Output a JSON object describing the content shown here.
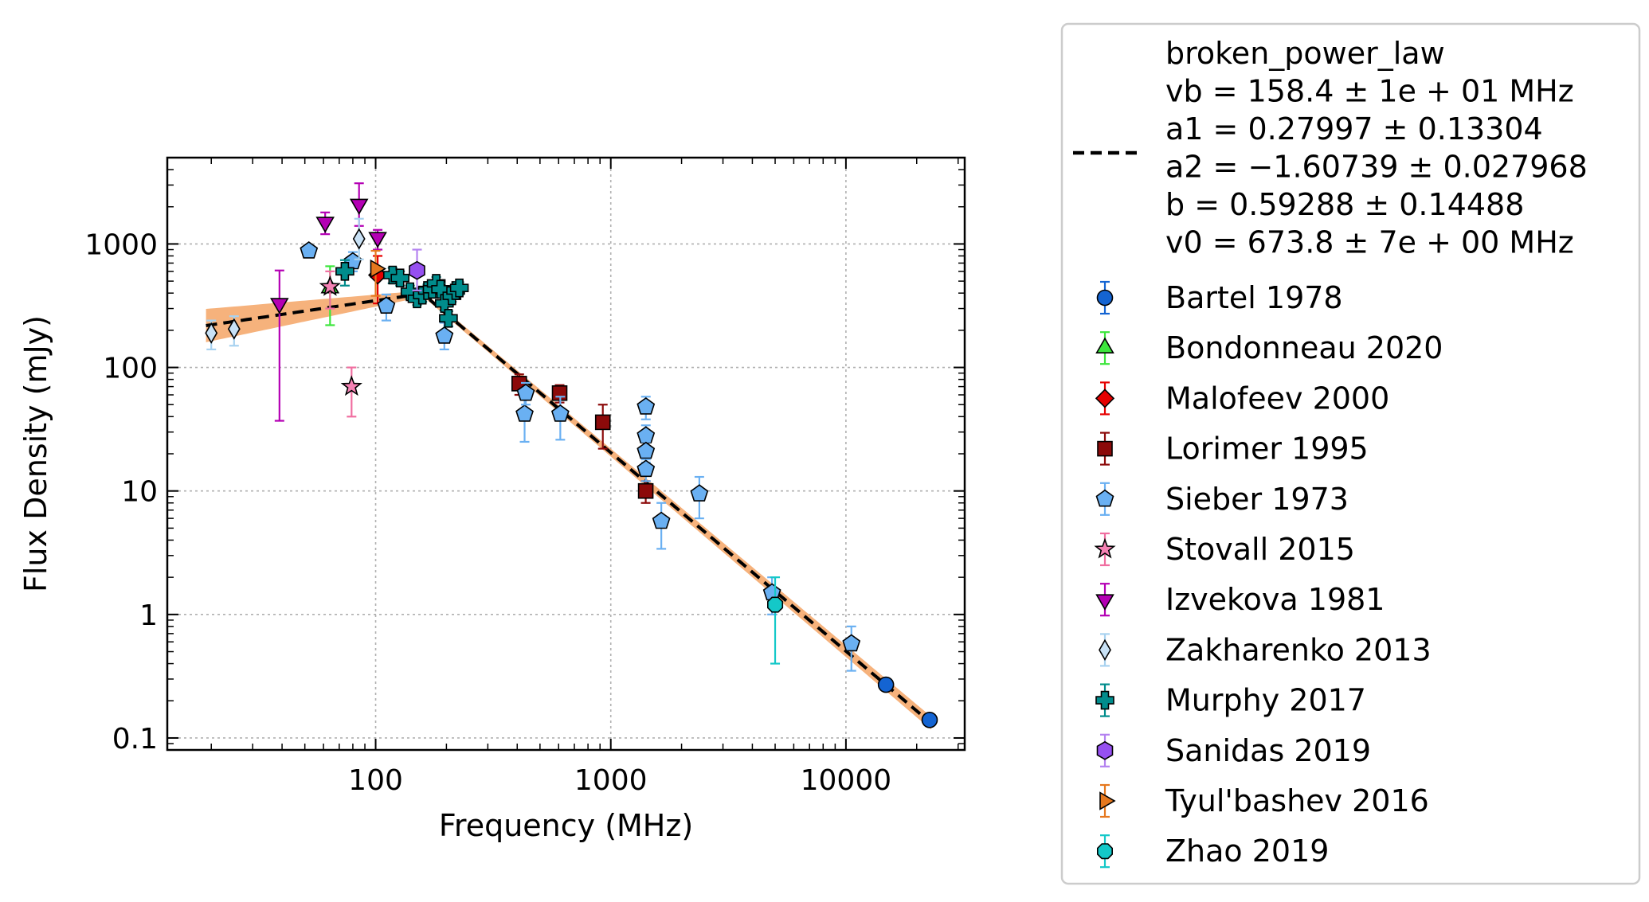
{
  "chart_data": {
    "type": "scatter",
    "xlabel": "Frequency (MHz)",
    "ylabel": "Flux Density (mJy)",
    "xscale": "log",
    "yscale": "log",
    "xlim": [
      13,
      32000
    ],
    "ylim": [
      0.08,
      5000
    ],
    "grid": true,
    "legend_position": "outside-right",
    "x_ticks": [
      {
        "value": 100,
        "label": "100"
      },
      {
        "value": 1000,
        "label": "1000"
      },
      {
        "value": 10000,
        "label": "10000"
      }
    ],
    "y_ticks": [
      {
        "value": 0.1,
        "label": "0.1"
      },
      {
        "value": 1,
        "label": "1"
      },
      {
        "value": 10,
        "label": "10"
      },
      {
        "value": 100,
        "label": "100"
      },
      {
        "value": 1000,
        "label": "1000"
      }
    ],
    "fit": {
      "name": "broken_power_law",
      "params": [
        "vb = 158.4 ± 1e + 01 MHz",
        "a1 = 0.27997 ± 0.13304",
        "a2 = −1.60739 ± 0.027968",
        "b = 0.59288 ± 0.14488",
        "v0 = 673.8 ± 7e + 00 MHz"
      ],
      "vb": 158.4,
      "a1": 0.27997,
      "a2": -1.60739,
      "b": 0.59288,
      "v0": 673.8,
      "x_range": [
        19,
        23000
      ],
      "line_color": "#000000",
      "band_color": "#f5a465"
    },
    "series": [
      {
        "name": "Bartel 1978",
        "marker": "circle",
        "color": "#1464d2",
        "err_color": "#1464d2",
        "points": [
          {
            "x": 14800,
            "y": 0.27,
            "lo": 0.25,
            "hi": 0.29
          },
          {
            "x": 22700,
            "y": 0.14,
            "lo": 0.13,
            "hi": 0.15
          }
        ]
      },
      {
        "name": "Bondonneau 2020",
        "marker": "triangle-up",
        "color": "#3ce63c",
        "err_color": "#3ce63c",
        "points": [
          {
            "x": 64,
            "y": 440,
            "lo": 220,
            "hi": 660
          }
        ]
      },
      {
        "name": "Malofeev 2000",
        "marker": "diamond",
        "color": "#e60000",
        "err_color": "#e60000",
        "points": [
          {
            "x": 102,
            "y": 560,
            "lo": 330,
            "hi": 800
          }
        ]
      },
      {
        "name": "Lorimer 1995",
        "marker": "square",
        "color": "#8c0a0a",
        "err_color": "#8c0a0a",
        "points": [
          {
            "x": 408,
            "y": 74,
            "lo": 60,
            "hi": 88
          },
          {
            "x": 606,
            "y": 62,
            "lo": 52,
            "hi": 72
          },
          {
            "x": 925,
            "y": 36,
            "lo": 22,
            "hi": 50
          },
          {
            "x": 1408,
            "y": 10,
            "lo": 8,
            "hi": 12
          }
        ]
      },
      {
        "name": "Sieber 1973",
        "marker": "pentagon",
        "color": "#6ab0f2",
        "err_color": "#6ab0f2",
        "points": [
          {
            "x": 52,
            "y": 880,
            "lo": 780,
            "hi": 980
          },
          {
            "x": 80,
            "y": 720,
            "lo": 600,
            "hi": 860
          },
          {
            "x": 111,
            "y": 315,
            "lo": 240,
            "hi": 390
          },
          {
            "x": 196,
            "y": 180,
            "lo": 140,
            "hi": 230
          },
          {
            "x": 430,
            "y": 42,
            "lo": 25,
            "hi": 60
          },
          {
            "x": 435,
            "y": 62,
            "lo": 50,
            "hi": 75
          },
          {
            "x": 610,
            "y": 42,
            "lo": 26,
            "hi": 58
          },
          {
            "x": 1410,
            "y": 48,
            "lo": 38,
            "hi": 58
          },
          {
            "x": 1410,
            "y": 28,
            "lo": 22,
            "hi": 34
          },
          {
            "x": 1410,
            "y": 21,
            "lo": 17,
            "hi": 25
          },
          {
            "x": 1410,
            "y": 15,
            "lo": 12,
            "hi": 18
          },
          {
            "x": 1640,
            "y": 5.7,
            "lo": 3.4,
            "hi": 8
          },
          {
            "x": 2380,
            "y": 9.5,
            "lo": 6,
            "hi": 13
          },
          {
            "x": 4850,
            "y": 1.5,
            "lo": 1.0,
            "hi": 2.0
          },
          {
            "x": 10550,
            "y": 0.58,
            "lo": 0.35,
            "hi": 0.8
          }
        ]
      },
      {
        "name": "Stovall 2015",
        "marker": "star",
        "color": "#f582b4",
        "err_color": "#f06ea0",
        "points": [
          {
            "x": 64,
            "y": 450,
            "lo": 300,
            "hi": 600
          },
          {
            "x": 79,
            "y": 70,
            "lo": 40,
            "hi": 100
          }
        ]
      },
      {
        "name": "Izvekova 1981",
        "marker": "triangle-down",
        "color": "#b400b4",
        "err_color": "#b400b4",
        "points": [
          {
            "x": 39,
            "y": 330,
            "lo": 37,
            "hi": 610
          },
          {
            "x": 61,
            "y": 1500,
            "lo": 1200,
            "hi": 1800
          },
          {
            "x": 85,
            "y": 2100,
            "lo": 1400,
            "hi": 3100
          },
          {
            "x": 102,
            "y": 1130,
            "lo": 900,
            "hi": 1300
          }
        ]
      },
      {
        "name": "Zakharenko 2013",
        "marker": "thin-diamond",
        "color": "#c8e1f5",
        "err_color": "#a8d2f0",
        "points": [
          {
            "x": 20,
            "y": 190,
            "lo": 140,
            "hi": 240
          },
          {
            "x": 25,
            "y": 205,
            "lo": 150,
            "hi": 260
          },
          {
            "x": 85,
            "y": 1100,
            "lo": 750,
            "hi": 1600
          }
        ]
      },
      {
        "name": "Murphy 2017",
        "marker": "plus",
        "color": "#008c8c",
        "err_color": "#008c8c",
        "points": [
          {
            "x": 74,
            "y": 600,
            "lo": 460,
            "hi": 740
          },
          {
            "x": 118,
            "y": 560,
            "lo": 480,
            "hi": 640
          },
          {
            "x": 127,
            "y": 530,
            "lo": 460,
            "hi": 600
          },
          {
            "x": 140,
            "y": 410,
            "lo": 360,
            "hi": 460
          },
          {
            "x": 150,
            "y": 360,
            "lo": 320,
            "hi": 400
          },
          {
            "x": 158,
            "y": 385,
            "lo": 340,
            "hi": 430
          },
          {
            "x": 166,
            "y": 420,
            "lo": 370,
            "hi": 470
          },
          {
            "x": 174,
            "y": 430,
            "lo": 380,
            "hi": 480
          },
          {
            "x": 181,
            "y": 480,
            "lo": 420,
            "hi": 540
          },
          {
            "x": 189,
            "y": 430,
            "lo": 380,
            "hi": 480
          },
          {
            "x": 196,
            "y": 330,
            "lo": 290,
            "hi": 370
          },
          {
            "x": 204,
            "y": 250,
            "lo": 215,
            "hi": 285
          },
          {
            "x": 211,
            "y": 380,
            "lo": 340,
            "hi": 420
          },
          {
            "x": 219,
            "y": 420,
            "lo": 375,
            "hi": 465
          },
          {
            "x": 227,
            "y": 440,
            "lo": 390,
            "hi": 490
          }
        ]
      },
      {
        "name": "Sanidas 2019",
        "marker": "hexagon",
        "color": "#9650f0",
        "err_color": "#b482f0",
        "points": [
          {
            "x": 150,
            "y": 610,
            "lo": 420,
            "hi": 900
          }
        ]
      },
      {
        "name": "Tyul'bashev 2016",
        "marker": "triangle-right",
        "color": "#e6781e",
        "err_color": "#e6781e",
        "points": [
          {
            "x": 100,
            "y": 630,
            "lo": 380,
            "hi": 880
          }
        ]
      },
      {
        "name": "Zhao 2019",
        "marker": "octagon",
        "color": "#14c8c8",
        "err_color": "#14c8c8",
        "points": [
          {
            "x": 5000,
            "y": 1.2,
            "lo": 0.4,
            "hi": 2.0
          }
        ]
      }
    ]
  }
}
